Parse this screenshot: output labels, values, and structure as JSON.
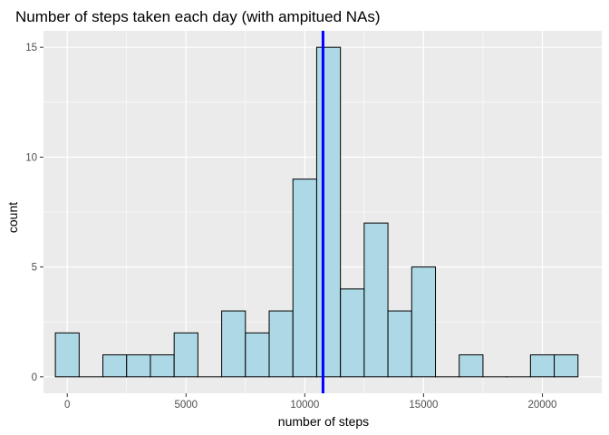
{
  "chart_data": {
    "type": "bar",
    "title": "Number of steps taken each day (with ampitued NAs)",
    "xlabel": "number of steps",
    "ylabel": "count",
    "xlim": [
      -1000,
      22500
    ],
    "ylim": [
      -0.75,
      15.75
    ],
    "x_ticks": [
      0,
      5000,
      10000,
      15000,
      20000
    ],
    "x_tick_labels": [
      "0",
      "5000",
      "10000",
      "15000",
      "20000"
    ],
    "y_ticks": [
      0,
      5,
      10,
      15
    ],
    "y_tick_labels": [
      "0",
      "5",
      "10",
      "15"
    ],
    "bin_width": 1000,
    "bins": [
      {
        "x0": -500,
        "x1": 500,
        "count": 2
      },
      {
        "x0": 500,
        "x1": 1500,
        "count": 0
      },
      {
        "x0": 1500,
        "x1": 2500,
        "count": 1
      },
      {
        "x0": 2500,
        "x1": 3500,
        "count": 1
      },
      {
        "x0": 3500,
        "x1": 4500,
        "count": 1
      },
      {
        "x0": 4500,
        "x1": 5500,
        "count": 2
      },
      {
        "x0": 5500,
        "x1": 6500,
        "count": 0
      },
      {
        "x0": 6500,
        "x1": 7500,
        "count": 3
      },
      {
        "x0": 7500,
        "x1": 8500,
        "count": 2
      },
      {
        "x0": 8500,
        "x1": 9500,
        "count": 3
      },
      {
        "x0": 9500,
        "x1": 10500,
        "count": 9
      },
      {
        "x0": 10500,
        "x1": 11500,
        "count": 15
      },
      {
        "x0": 11500,
        "x1": 12500,
        "count": 4
      },
      {
        "x0": 12500,
        "x1": 13500,
        "count": 7
      },
      {
        "x0": 13500,
        "x1": 14500,
        "count": 3
      },
      {
        "x0": 14500,
        "x1": 15500,
        "count": 5
      },
      {
        "x0": 15500,
        "x1": 16500,
        "count": 0
      },
      {
        "x0": 16500,
        "x1": 17500,
        "count": 1
      },
      {
        "x0": 17500,
        "x1": 18500,
        "count": 0
      },
      {
        "x0": 18500,
        "x1": 19500,
        "count": 0
      },
      {
        "x0": 19500,
        "x1": 20500,
        "count": 1
      },
      {
        "x0": 20500,
        "x1": 21500,
        "count": 1
      }
    ],
    "vline_x": 10766,
    "grid": true,
    "colors": {
      "panel": "#ebebeb",
      "grid_major": "#ffffff",
      "bar_fill": "#add8e6",
      "bar_stroke": "#000000",
      "vline": "#0000ff"
    }
  }
}
